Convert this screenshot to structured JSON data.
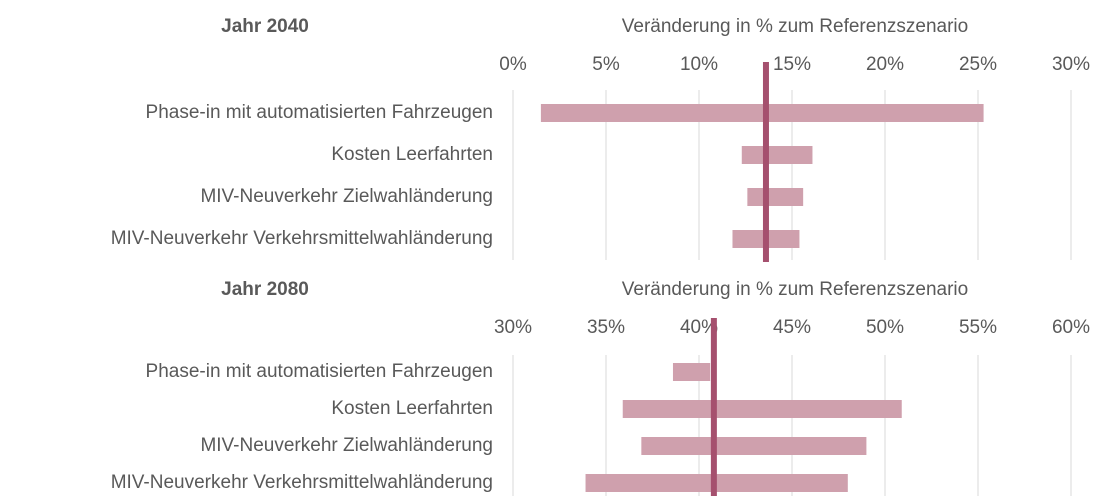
{
  "chart_data": [
    {
      "type": "range_bar",
      "title": "Jahr 2040",
      "axis_label": "Veränderung in % zum Referenzszenario",
      "categories": [
        "Phase-in mit automatisierten Fahrzeugen",
        "Kosten Leerfahrten",
        "MIV-Neuverkehr Zielwahländerung",
        "MIV-Neuverkehr Verkehrsmittelwahländerung"
      ],
      "low": [
        1.5,
        12.3,
        12.6,
        11.8
      ],
      "high": [
        25.3,
        16.1,
        15.6,
        15.4
      ],
      "reference": 13.6,
      "color": "#cfa0ad",
      "reference_color": "#a5506e",
      "xlim": [
        0,
        30
      ],
      "xticks": [
        {
          "value": 0,
          "label": "0%"
        },
        {
          "value": 5,
          "label": "5%"
        },
        {
          "value": 10,
          "label": "10%"
        },
        {
          "value": 15,
          "label": "15%"
        },
        {
          "value": 20,
          "label": "20%"
        },
        {
          "value": 25,
          "label": "25%"
        },
        {
          "value": 30,
          "label": "30%"
        }
      ],
      "grid": true
    },
    {
      "type": "range_bar",
      "title": "Jahr 2080",
      "axis_label": "Veränderung in % zum Referenzszenario",
      "categories": [
        "Phase-in mit automatisierten Fahrzeugen",
        "Kosten Leerfahrten",
        "MIV-Neuverkehr Zielwahländerung",
        "MIV-Neuverkehr Verkehrsmittelwahländerung"
      ],
      "low": [
        38.6,
        35.9,
        36.9,
        33.9
      ],
      "high": [
        40.6,
        50.9,
        49.0,
        48.0
      ],
      "reference": 40.8,
      "color": "#cfa0ad",
      "reference_color": "#a5506e",
      "xlim": [
        30,
        60
      ],
      "xticks": [
        {
          "value": 30,
          "label": "30%"
        },
        {
          "value": 35,
          "label": "35%"
        },
        {
          "value": 40,
          "label": "40%"
        },
        {
          "value": 45,
          "label": "45%"
        },
        {
          "value": 50,
          "label": "50%"
        },
        {
          "value": 55,
          "label": "55%"
        },
        {
          "value": 60,
          "label": "60%"
        }
      ],
      "grid": true
    }
  ]
}
